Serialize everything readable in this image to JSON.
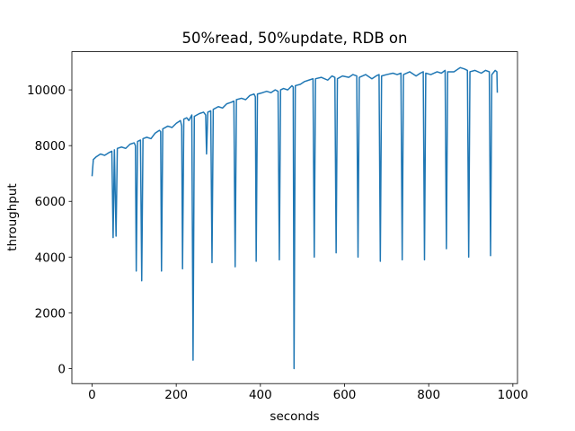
{
  "chart_data": {
    "type": "line",
    "title": "50%read, 50%update, RDB on",
    "x_label": "seconds",
    "y_label": "throughput",
    "color": "#1f77b4",
    "x": [
      0,
      3,
      10,
      20,
      30,
      40,
      47,
      50,
      53,
      57,
      60,
      70,
      80,
      90,
      100,
      103,
      105,
      108,
      115,
      118,
      121,
      130,
      140,
      150,
      160,
      163,
      165,
      168,
      180,
      190,
      200,
      210,
      213,
      215,
      218,
      225,
      230,
      237,
      240,
      243,
      255,
      265,
      270,
      272,
      275,
      282,
      285,
      288,
      300,
      310,
      320,
      330,
      337,
      340,
      343,
      355,
      365,
      375,
      385,
      388,
      390,
      393,
      405,
      415,
      425,
      435,
      442,
      445,
      448,
      455,
      465,
      475,
      478,
      480,
      483,
      495,
      505,
      515,
      525,
      528,
      531,
      545,
      560,
      570,
      577,
      580,
      583,
      595,
      610,
      620,
      629,
      632,
      635,
      650,
      665,
      675,
      682,
      685,
      688,
      700,
      715,
      725,
      734,
      737,
      740,
      755,
      770,
      780,
      787,
      790,
      793,
      805,
      820,
      830,
      839,
      842,
      845,
      860,
      875,
      885,
      892,
      895,
      898,
      910,
      925,
      935,
      944,
      947,
      950,
      958,
      962,
      963
    ],
    "values": [
      6900,
      7500,
      7600,
      7700,
      7650,
      7750,
      7800,
      4700,
      7850,
      4750,
      7900,
      7950,
      7900,
      8050,
      8100,
      8000,
      3500,
      8150,
      8200,
      3150,
      8250,
      8300,
      8250,
      8450,
      8550,
      8500,
      3500,
      8600,
      8700,
      8650,
      8800,
      8900,
      8700,
      3580,
      8950,
      9000,
      8900,
      9100,
      300,
      9050,
      9150,
      9200,
      9100,
      7700,
      9200,
      9250,
      3800,
      9300,
      9400,
      9350,
      9500,
      9550,
      9600,
      3650,
      9650,
      9700,
      9650,
      9800,
      9850,
      9750,
      3850,
      9850,
      9900,
      9950,
      9900,
      10000,
      9950,
      3900,
      10000,
      10050,
      10000,
      10150,
      10100,
      0,
      10150,
      10200,
      10300,
      10350,
      10400,
      4000,
      10400,
      10450,
      10350,
      10500,
      10450,
      4150,
      10400,
      10500,
      10450,
      10550,
      10500,
      4000,
      10450,
      10550,
      10400,
      10500,
      10550,
      3850,
      10500,
      10550,
      10600,
      10550,
      10600,
      3900,
      10550,
      10650,
      10500,
      10600,
      10650,
      3900,
      10600,
      10550,
      10650,
      10600,
      10700,
      4300,
      10650,
      10650,
      10800,
      10750,
      10700,
      4000,
      10650,
      10700,
      10600,
      10700,
      10650,
      4050,
      10550,
      10700,
      10650,
      9900
    ],
    "xlim": [
      -48,
      1011
    ],
    "ylim": [
      -540,
      11370
    ],
    "xticks": [
      0,
      200,
      400,
      600,
      800,
      1000
    ],
    "yticks": [
      0,
      2000,
      4000,
      6000,
      8000,
      10000
    ]
  }
}
